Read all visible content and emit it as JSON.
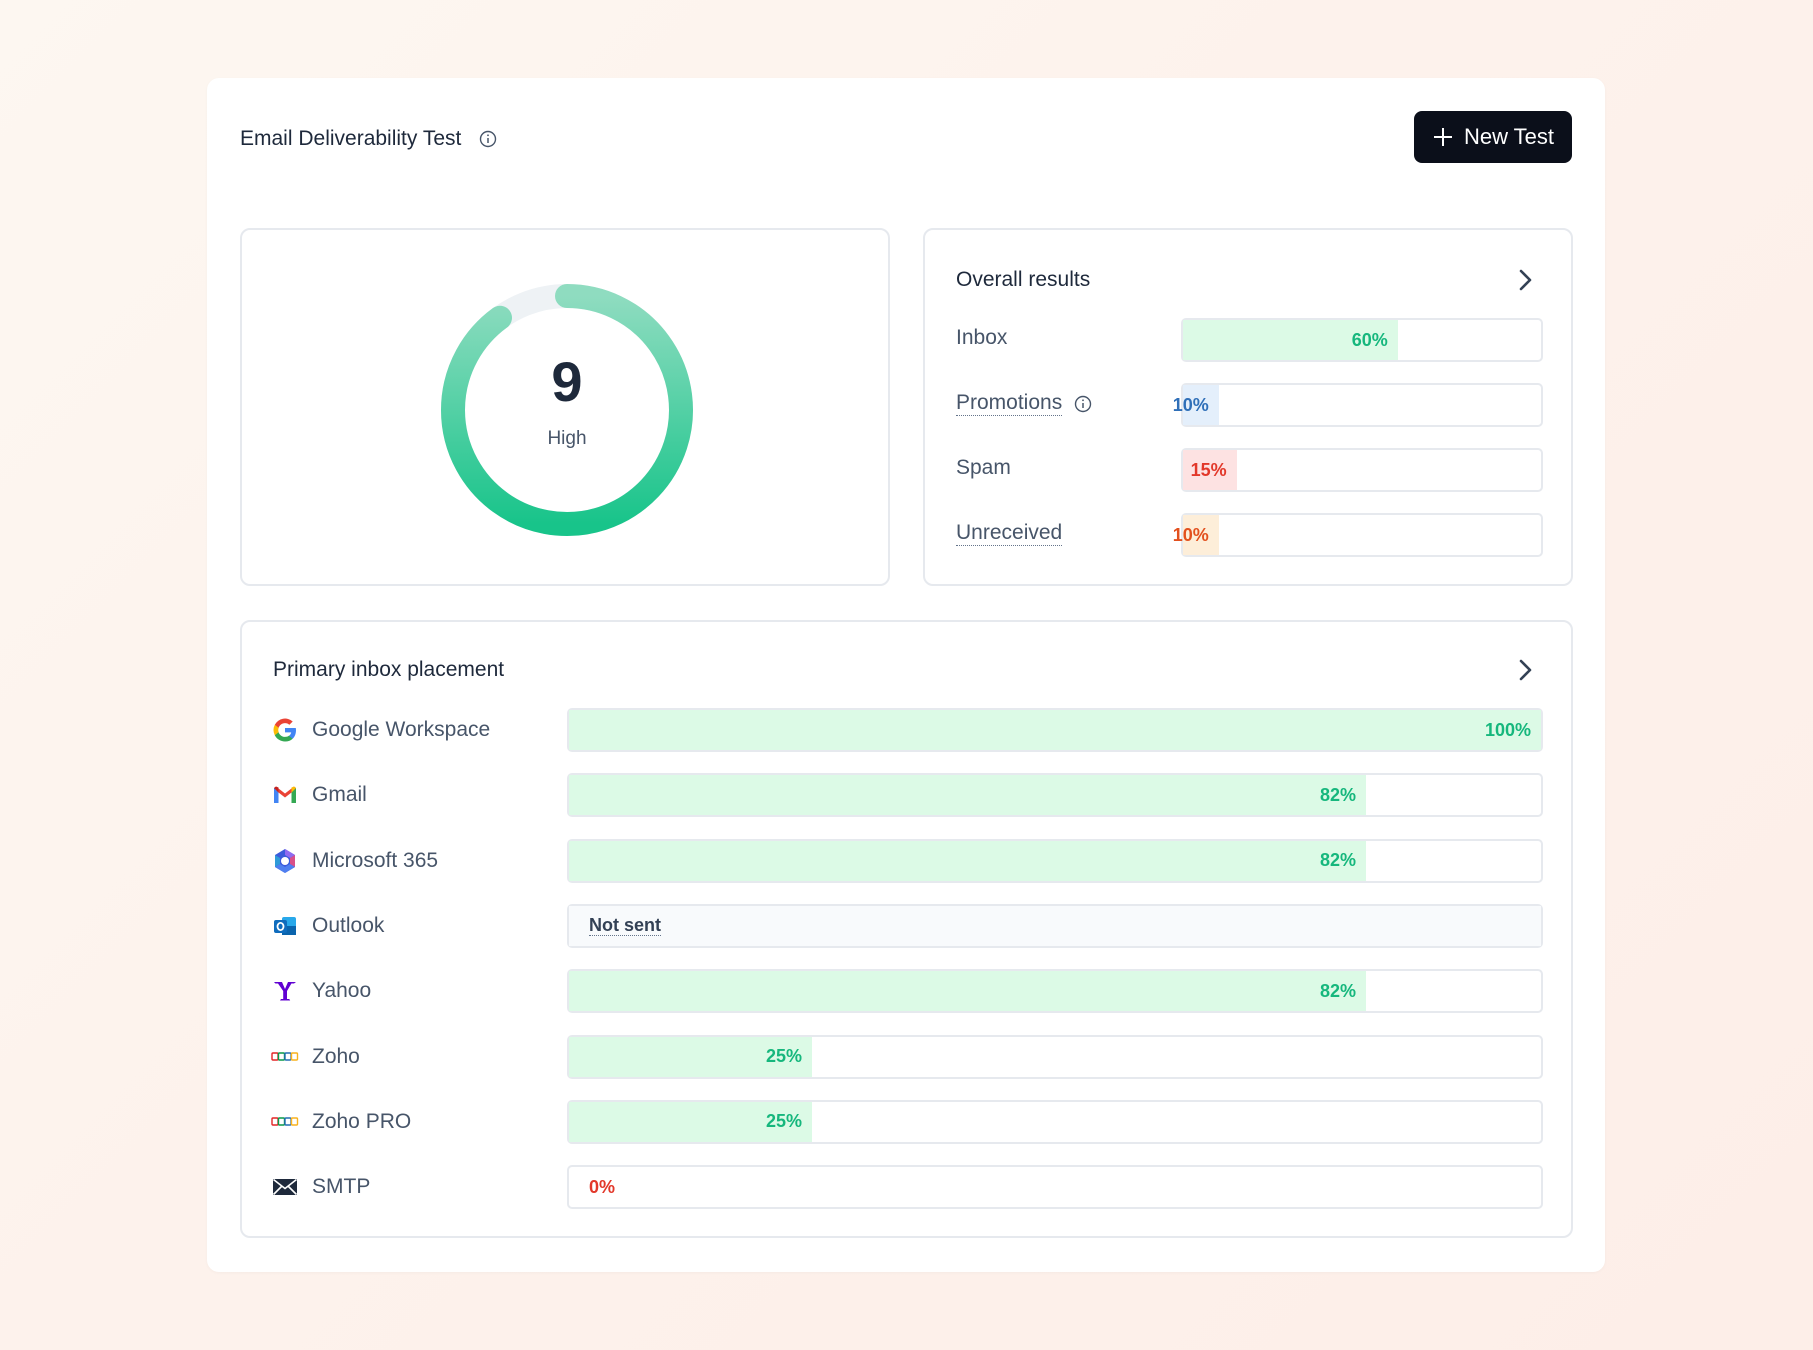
{
  "header": {
    "title": "Email Deliverability Test",
    "info_icon": "info-circle-icon",
    "new_test_label": "New Test",
    "new_test_icon": "plus-icon"
  },
  "score": {
    "value": "9",
    "label": "High",
    "fraction": 0.9,
    "gradient_start": "#8fdcc0",
    "gradient_end": "#18c48a",
    "track_color": "#eef2f5"
  },
  "overall_results": {
    "title": "Overall results",
    "items": [
      {
        "label": "Inbox",
        "value": "60%",
        "pct": 60,
        "dotted": false,
        "info": false,
        "fill": "#dcfae6",
        "text": "#16b77d"
      },
      {
        "label": "Promotions",
        "value": "10%",
        "pct": 10,
        "dotted": true,
        "info": true,
        "fill": "#e4effb",
        "text": "#2f6fb8"
      },
      {
        "label": "Spam",
        "value": "15%",
        "pct": 15,
        "dotted": false,
        "info": false,
        "fill": "#fde2e2",
        "text": "#e2382a"
      },
      {
        "label": "Unreceived",
        "value": "10%",
        "pct": 10,
        "dotted": true,
        "info": false,
        "fill": "#fdeed9",
        "text": "#e2501e"
      }
    ]
  },
  "placement": {
    "title": "Primary inbox placement",
    "providers": [
      {
        "name": "Google Workspace",
        "icon": "google-icon",
        "value": "100%",
        "pct": 100,
        "status": "sent"
      },
      {
        "name": "Gmail",
        "icon": "gmail-icon",
        "value": "82%",
        "pct": 82,
        "status": "sent"
      },
      {
        "name": "Microsoft 365",
        "icon": "microsoft-365-icon",
        "value": "82%",
        "pct": 82,
        "status": "sent"
      },
      {
        "name": "Outlook",
        "icon": "outlook-icon",
        "value": "Not sent",
        "pct": 0,
        "status": "not_sent"
      },
      {
        "name": "Yahoo",
        "icon": "yahoo-icon",
        "value": "82%",
        "pct": 82,
        "status": "sent"
      },
      {
        "name": "Zoho",
        "icon": "zoho-icon",
        "value": "25%",
        "pct": 25,
        "status": "sent"
      },
      {
        "name": "Zoho PRO",
        "icon": "zoho-icon",
        "value": "25%",
        "pct": 25,
        "status": "sent"
      },
      {
        "name": "SMTP",
        "icon": "envelope-icon",
        "value": "0%",
        "pct": 0,
        "status": "zero"
      }
    ],
    "fill_color": "#dcfae6",
    "value_color": "#16b77d",
    "zero_color": "#e2382a"
  }
}
